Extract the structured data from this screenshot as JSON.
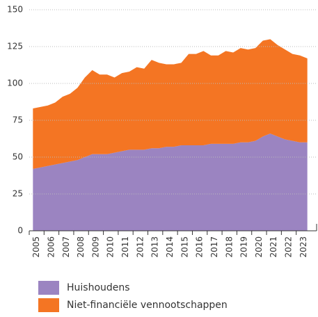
{
  "chart_data": {
    "type": "stacked-area",
    "categories": [
      "2005",
      null,
      "2006",
      null,
      "2007",
      null,
      "2008",
      null,
      "2009",
      null,
      "2010",
      null,
      "2011",
      null,
      "2012",
      null,
      "2013",
      null,
      "2014",
      null,
      "2015",
      null,
      "2016",
      null,
      "2017",
      null,
      "2018",
      null,
      "2019",
      null,
      "2020",
      null,
      "2021",
      null,
      "2022",
      null,
      "2023",
      null
    ],
    "series": [
      {
        "name": "Huishoudens",
        "color": "#9b84c1",
        "values": [
          42,
          43,
          44,
          45,
          46,
          47,
          48,
          50,
          52,
          52,
          52,
          53,
          54,
          55,
          55,
          55,
          56,
          56,
          57,
          57,
          58,
          58,
          58,
          58,
          59,
          59,
          59,
          59,
          60,
          60,
          61,
          64,
          66,
          64,
          62,
          61,
          60,
          60
        ]
      },
      {
        "name": "Niet-financiële vennootschappen",
        "color": "#f47523",
        "values": [
          41,
          41,
          41,
          42,
          45,
          46,
          49,
          54,
          57,
          54,
          54,
          51,
          53,
          53,
          56,
          55,
          60,
          58,
          56,
          56,
          56,
          62,
          62,
          64,
          60,
          60,
          63,
          62,
          64,
          63,
          63,
          65,
          64,
          62,
          61,
          59,
          59,
          57
        ]
      }
    ],
    "ylim": [
      0,
      150
    ],
    "yticks": [
      0,
      25,
      50,
      75,
      100,
      125,
      150
    ],
    "grid": true
  }
}
